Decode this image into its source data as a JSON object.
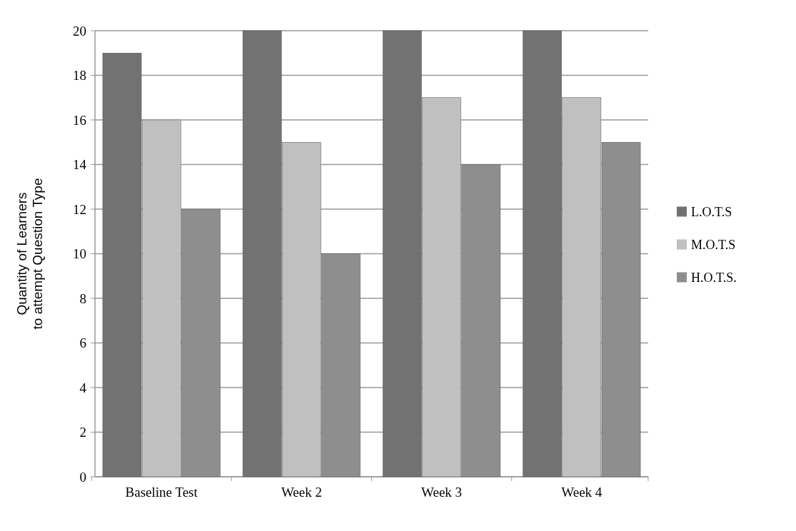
{
  "chart_data": {
    "type": "bar",
    "ylabel": "Quantity of Learners\nto attempt Question Type",
    "categories": [
      "Baseline Test",
      "Week 2",
      "Week 3",
      "Week 4"
    ],
    "series": [
      {
        "name": "L.O.T.S",
        "color": "#727272",
        "values": [
          19,
          20,
          20,
          20
        ]
      },
      {
        "name": "M.O.T.S",
        "color": "#c0c0c0",
        "values": [
          16,
          15,
          17,
          17
        ]
      },
      {
        "name": "H.O.T.S.",
        "color": "#8e8e8e",
        "values": [
          12,
          10,
          14,
          15
        ]
      }
    ],
    "ylim": [
      0,
      20
    ],
    "yticks": [
      0,
      2,
      4,
      6,
      8,
      10,
      12,
      14,
      16,
      18,
      20
    ],
    "grid": "y",
    "legend": "right"
  }
}
